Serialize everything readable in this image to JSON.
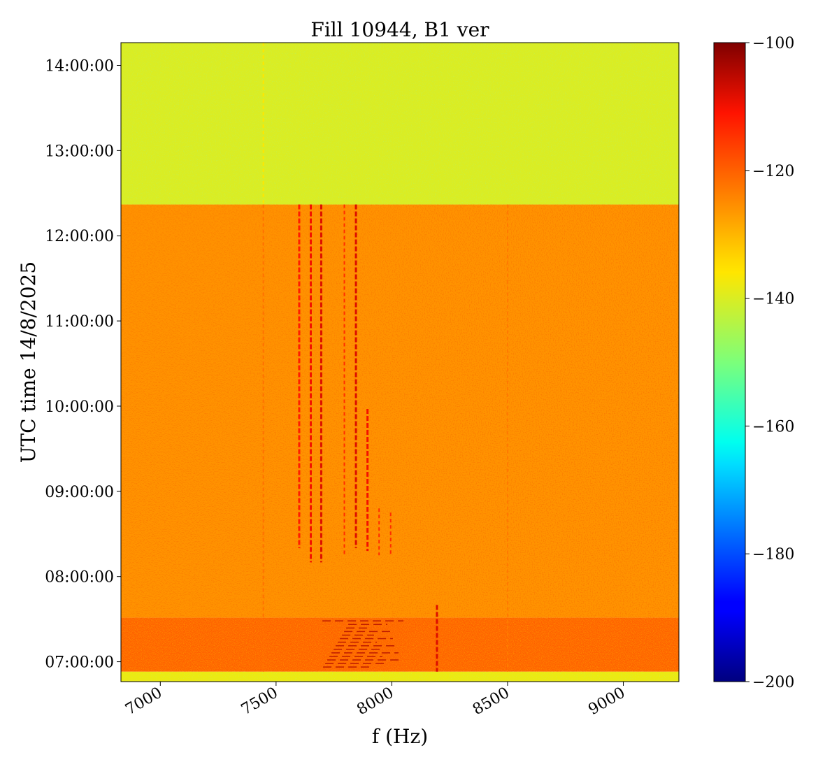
{
  "chart_data": {
    "type": "heatmap",
    "title": "Fill 10944, B1 ver",
    "xlabel": "f (Hz)",
    "ylabel": "UTC time 14/8/2025",
    "xlim": [
      6830,
      9240
    ],
    "ylim": [
      "06:46:00",
      "14:16:00"
    ],
    "x_ticks": [
      {
        "value": 7000,
        "label": "7000"
      },
      {
        "value": 7500,
        "label": "7500"
      },
      {
        "value": 8000,
        "label": "8000"
      },
      {
        "value": 8500,
        "label": "8500"
      },
      {
        "value": 9000,
        "label": "9000"
      }
    ],
    "y_ticks": [
      {
        "value": "07:00:00",
        "label": "07:00:00"
      },
      {
        "value": "08:00:00",
        "label": "08:00:00"
      },
      {
        "value": "09:00:00",
        "label": "09:00:00"
      },
      {
        "value": "10:00:00",
        "label": "10:00:00"
      },
      {
        "value": "11:00:00",
        "label": "11:00:00"
      },
      {
        "value": "12:00:00",
        "label": "12:00:00"
      },
      {
        "value": "13:00:00",
        "label": "13:00:00"
      },
      {
        "value": "14:00:00",
        "label": "14:00:00"
      }
    ],
    "colorbar": {
      "colormap": "jet",
      "range": [
        -200,
        -100
      ],
      "ticks": [
        {
          "value": -100,
          "label": "−100"
        },
        {
          "value": -120,
          "label": "−120"
        },
        {
          "value": -140,
          "label": "−140"
        },
        {
          "value": -160,
          "label": "−160"
        },
        {
          "value": -180,
          "label": "−180"
        },
        {
          "value": -200,
          "label": "−200"
        }
      ]
    },
    "regions": [
      {
        "t_start": "12:22:00",
        "t_end": "14:16:00",
        "level": -140
      },
      {
        "t_start": "07:31:00",
        "t_end": "12:22:00",
        "level": -126
      },
      {
        "t_start": "06:53:00",
        "t_end": "07:31:00",
        "level": -120
      },
      {
        "t_start": "06:46:00",
        "t_end": "06:53:00",
        "level": -138
      }
    ],
    "lines": [
      {
        "f": 7445,
        "t_start": "06:53:00",
        "t_end": "12:22:00",
        "level": -122
      },
      {
        "f": 8500,
        "t_start": "06:53:00",
        "t_end": "12:22:00",
        "level": -123
      },
      {
        "f": 7445,
        "t_start": "12:22:00",
        "t_end": "14:16:00",
        "level": -136
      },
      {
        "f": 7600,
        "t_start": "08:20:00",
        "t_end": "12:22:00",
        "level": -112
      },
      {
        "f": 7650,
        "t_start": "08:10:00",
        "t_end": "12:22:00",
        "level": -110
      },
      {
        "f": 7695,
        "t_start": "08:10:00",
        "t_end": "12:22:00",
        "level": -108
      },
      {
        "f": 7795,
        "t_start": "08:15:00",
        "t_end": "12:22:00",
        "level": -114
      },
      {
        "f": 7845,
        "t_start": "08:20:00",
        "t_end": "12:22:00",
        "level": -108
      },
      {
        "f": 7895,
        "t_start": "08:18:00",
        "t_end": "09:58:00",
        "level": -110
      },
      {
        "f": 7945,
        "t_start": "08:15:00",
        "t_end": "08:48:00",
        "level": -114
      },
      {
        "f": 7995,
        "t_start": "08:15:00",
        "t_end": "08:45:00",
        "level": -114
      },
      {
        "f": 8195,
        "t_start": "06:53:00",
        "t_end": "07:40:00",
        "level": -108
      }
    ],
    "bursts": [
      {
        "f_start": 7700,
        "f_end": 8050,
        "t_start": "06:55:00",
        "t_end": "07:30:00",
        "level": -104
      }
    ]
  }
}
